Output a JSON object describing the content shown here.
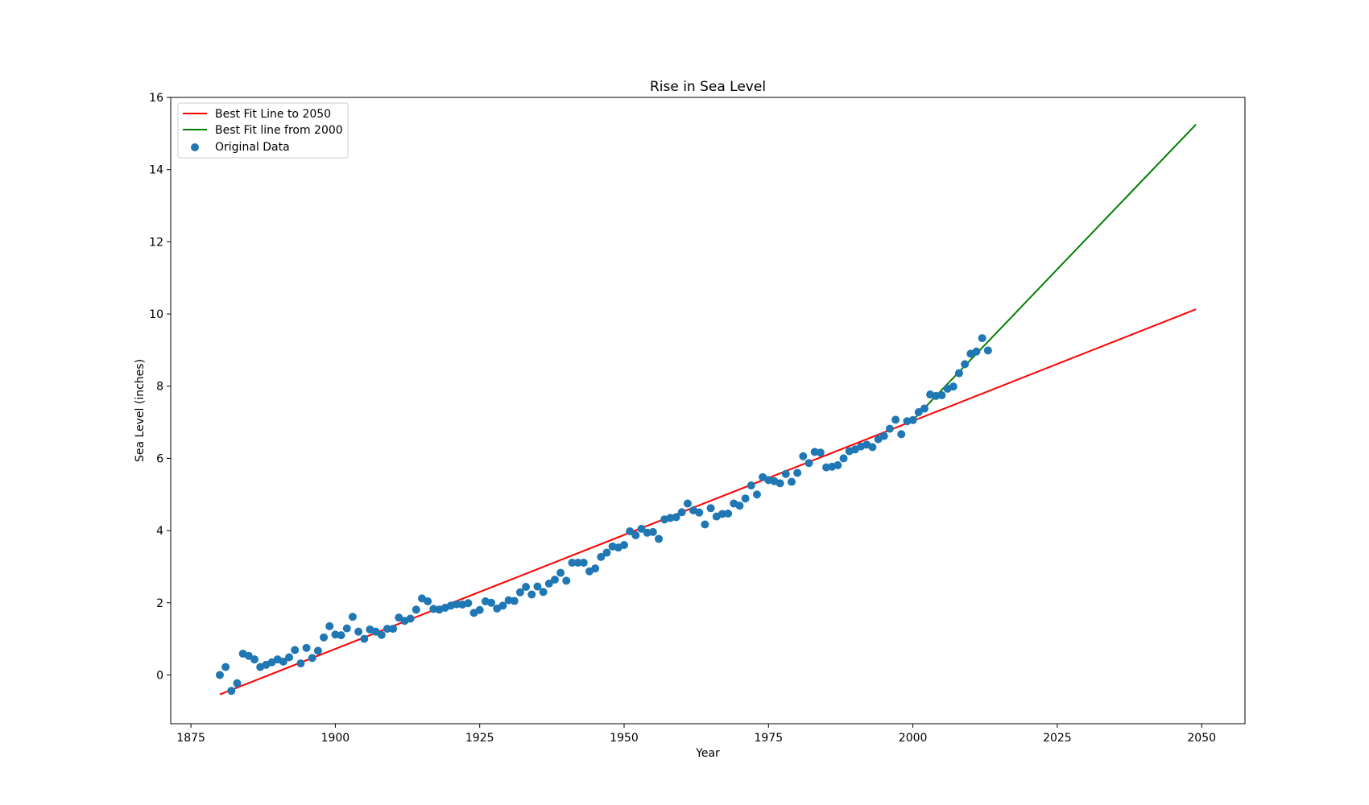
{
  "chart_data": {
    "type": "scatter",
    "title": "Rise in Sea Level",
    "xlabel": "Year",
    "ylabel": "Sea Level (inches)",
    "xlim": [
      1871.5,
      2057.5
    ],
    "ylim": [
      -1.35,
      16.0
    ],
    "xticks": [
      1875,
      1900,
      1925,
      1950,
      1975,
      2000,
      2025,
      2050
    ],
    "yticks": [
      0,
      2,
      4,
      6,
      8,
      10,
      12,
      14,
      16
    ],
    "grid": false,
    "legend_position": "upper-left",
    "colors": {
      "scatter": "#1f77b4",
      "fit_all": "#ff0000",
      "fit_2000": "#008000"
    },
    "series": [
      {
        "name": "Original Data",
        "kind": "scatter",
        "x": [
          1880,
          1881,
          1882,
          1883,
          1884,
          1885,
          1886,
          1887,
          1888,
          1889,
          1890,
          1891,
          1892,
          1893,
          1894,
          1895,
          1896,
          1897,
          1898,
          1899,
          1900,
          1901,
          1902,
          1903,
          1904,
          1905,
          1906,
          1907,
          1908,
          1909,
          1910,
          1911,
          1912,
          1913,
          1914,
          1915,
          1916,
          1917,
          1918,
          1919,
          1920,
          1921,
          1922,
          1923,
          1924,
          1925,
          1926,
          1927,
          1928,
          1929,
          1930,
          1931,
          1932,
          1933,
          1934,
          1935,
          1936,
          1937,
          1938,
          1939,
          1940,
          1941,
          1942,
          1943,
          1944,
          1945,
          1946,
          1947,
          1948,
          1949,
          1950,
          1951,
          1952,
          1953,
          1954,
          1955,
          1956,
          1957,
          1958,
          1959,
          1960,
          1961,
          1962,
          1963,
          1964,
          1965,
          1966,
          1967,
          1968,
          1969,
          1970,
          1971,
          1972,
          1973,
          1974,
          1975,
          1976,
          1977,
          1978,
          1979,
          1980,
          1981,
          1982,
          1983,
          1984,
          1985,
          1986,
          1987,
          1988,
          1989,
          1990,
          1991,
          1992,
          1993,
          1994,
          1995,
          1996,
          1997,
          1998,
          1999,
          2000,
          2001,
          2002,
          2003,
          2004,
          2005,
          2006,
          2007,
          2008,
          2009,
          2010,
          2011,
          2012,
          2013
        ],
        "y": [
          0.0,
          0.22,
          -0.44,
          -0.23,
          0.59,
          0.53,
          0.43,
          0.22,
          0.28,
          0.35,
          0.43,
          0.37,
          0.49,
          0.69,
          0.32,
          0.75,
          0.47,
          0.67,
          1.04,
          1.35,
          1.12,
          1.1,
          1.29,
          1.61,
          1.2,
          1.0,
          1.26,
          1.2,
          1.11,
          1.28,
          1.28,
          1.59,
          1.5,
          1.56,
          1.81,
          2.12,
          2.04,
          1.83,
          1.81,
          1.86,
          1.92,
          1.96,
          1.95,
          1.99,
          1.72,
          1.8,
          2.04,
          2.0,
          1.84,
          1.92,
          2.07,
          2.05,
          2.29,
          2.44,
          2.23,
          2.45,
          2.3,
          2.53,
          2.64,
          2.83,
          2.61,
          3.11,
          3.11,
          3.11,
          2.87,
          2.95,
          3.27,
          3.39,
          3.56,
          3.53,
          3.6,
          3.98,
          3.87,
          4.05,
          3.94,
          3.96,
          3.77,
          4.31,
          4.35,
          4.37,
          4.51,
          4.75,
          4.56,
          4.5,
          4.17,
          4.62,
          4.39,
          4.46,
          4.47,
          4.75,
          4.69,
          4.89,
          5.25,
          5.0,
          5.48,
          5.4,
          5.37,
          5.31,
          5.57,
          5.35,
          5.6,
          6.06,
          5.87,
          6.18,
          6.16,
          5.75,
          5.77,
          5.81,
          6.0,
          6.2,
          6.25,
          6.33,
          6.38,
          6.31,
          6.53,
          6.62,
          6.82,
          7.07,
          6.67,
          7.03,
          7.06,
          7.28,
          7.38,
          7.77,
          7.73,
          7.75,
          7.93,
          7.99,
          8.36,
          8.61,
          8.9,
          8.96,
          9.33,
          8.99
        ]
      },
      {
        "name": "Best Fit Line to 2050",
        "kind": "line",
        "x": [
          1880,
          2049
        ],
        "y": [
          -0.54,
          10.13
        ]
      },
      {
        "name": "Best Fit line from 2000",
        "kind": "line",
        "x": [
          2000,
          2049
        ],
        "y": [
          7.06,
          15.25
        ]
      }
    ]
  }
}
